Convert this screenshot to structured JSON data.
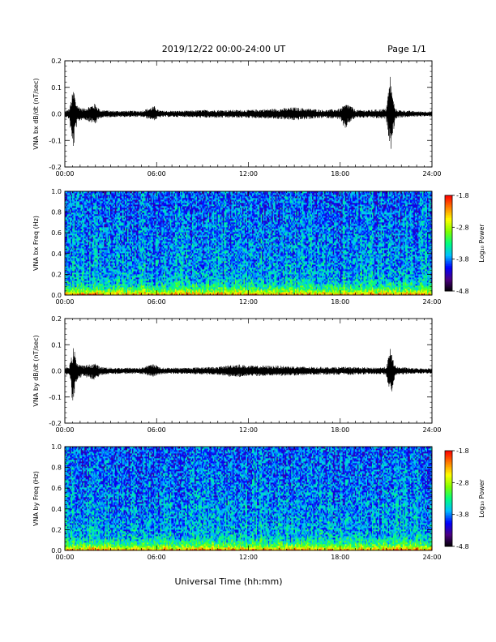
{
  "header": {
    "title": "2019/12/22  00:00-24:00 UT",
    "page": "Page 1/1"
  },
  "footer": {
    "xlabel": "Universal Time (hh:mm)"
  },
  "colorbar": {
    "label": "Log₁₀ Power",
    "ticks": [
      "-1.8",
      "-2.8",
      "-3.8",
      "-4.8"
    ],
    "tick_values": [
      -1.8,
      -2.8,
      -3.8,
      -4.8
    ],
    "range": [
      -4.8,
      -1.8
    ],
    "colormap": [
      "#000000",
      "#4b0082",
      "#0000ff",
      "#00bfff",
      "#00ff80",
      "#7fff00",
      "#ffff00",
      "#ff8000",
      "#ff0000"
    ]
  },
  "chart_data": [
    {
      "type": "line",
      "ylabel": "VNA bx dB/dt (nT/sec)",
      "xlim": [
        0,
        24
      ],
      "ylim": [
        -0.2,
        0.2
      ],
      "x_ticks": [
        "00:00",
        "06:00",
        "12:00",
        "18:00",
        "24:00"
      ],
      "y_ticks": [
        "0.2",
        "0.1",
        "0.0",
        "-0.1",
        "-0.2"
      ],
      "y_tick_values": [
        0.2,
        0.1,
        0.0,
        -0.1,
        -0.2
      ],
      "series": [
        {
          "x": [
            0,
            0.3,
            0.5,
            0.6,
            0.7,
            0.9,
            1.2,
            2.0,
            2.3,
            2.6,
            3.0,
            4.0,
            5.0,
            5.9,
            6.1,
            6.4,
            7.0,
            8.0,
            9.0,
            10.0,
            11.0,
            12.0,
            13.0,
            14.0,
            15.0,
            16.0,
            17.0,
            18.0,
            18.3,
            18.5,
            19.0,
            20.0,
            21.0,
            21.3,
            21.4,
            21.6,
            21.8,
            22.5,
            23.0,
            24.0
          ],
          "ymax": [
            0.01,
            0.02,
            0.08,
            0.1,
            0.05,
            0.03,
            0.02,
            0.04,
            0.015,
            0.015,
            0.012,
            0.012,
            0.012,
            0.03,
            0.015,
            0.012,
            0.012,
            0.012,
            0.015,
            0.015,
            0.015,
            0.015,
            0.018,
            0.02,
            0.025,
            0.02,
            0.015,
            0.02,
            0.035,
            0.04,
            0.015,
            0.015,
            0.02,
            0.16,
            0.08,
            0.02,
            0.015,
            0.012,
            0.01,
            0.01
          ],
          "ymin": [
            -0.01,
            -0.02,
            -0.14,
            -0.12,
            -0.06,
            -0.03,
            -0.02,
            -0.04,
            -0.015,
            -0.015,
            -0.012,
            -0.012,
            -0.012,
            -0.025,
            -0.015,
            -0.012,
            -0.012,
            -0.012,
            -0.015,
            -0.015,
            -0.015,
            -0.015,
            -0.018,
            -0.02,
            -0.025,
            -0.02,
            -0.015,
            -0.02,
            -0.07,
            -0.04,
            -0.015,
            -0.015,
            -0.02,
            -0.14,
            -0.1,
            -0.02,
            -0.015,
            -0.012,
            -0.01,
            -0.01
          ]
        }
      ]
    },
    {
      "type": "heatmap",
      "ylabel": "VNA bx Freq (Hz)",
      "xlim": [
        0,
        24
      ],
      "ylim": [
        0.0,
        1.0
      ],
      "x_ticks": [
        "00:00",
        "06:00",
        "12:00",
        "18:00",
        "24:00"
      ],
      "y_ticks": [
        "1.0",
        "0.8",
        "0.6",
        "0.4",
        "0.2",
        "0.0"
      ],
      "y_tick_values": [
        1.0,
        0.8,
        0.6,
        0.4,
        0.2,
        0.0
      ],
      "value_range": [
        -4.8,
        -1.8
      ]
    },
    {
      "type": "line",
      "ylabel": "VNA by dB/dt (nT/sec)",
      "xlim": [
        0,
        24
      ],
      "ylim": [
        -0.2,
        0.2
      ],
      "x_ticks": [
        "00:00",
        "06:00",
        "12:00",
        "18:00",
        "24:00"
      ],
      "y_ticks": [
        "0.2",
        "0.1",
        "0.0",
        "-0.1",
        "-0.2"
      ],
      "y_tick_values": [
        0.2,
        0.1,
        0.0,
        -0.1,
        -0.2
      ],
      "series": [
        {
          "x": [
            0,
            0.3,
            0.5,
            0.6,
            0.7,
            0.9,
            1.2,
            2.0,
            2.3,
            2.6,
            3.0,
            4.0,
            5.0,
            5.9,
            6.1,
            6.4,
            7.0,
            8.0,
            9.0,
            10.0,
            11.0,
            11.5,
            12.0,
            13.0,
            14.0,
            15.0,
            16.0,
            17.0,
            18.0,
            19.0,
            20.0,
            21.0,
            21.3,
            21.4,
            21.6,
            21.8,
            22.5,
            23.0,
            24.0
          ],
          "ymax": [
            0.01,
            0.02,
            0.07,
            0.1,
            0.05,
            0.03,
            0.02,
            0.03,
            0.015,
            0.015,
            0.012,
            0.012,
            0.012,
            0.03,
            0.015,
            0.012,
            0.012,
            0.012,
            0.015,
            0.015,
            0.025,
            0.025,
            0.02,
            0.02,
            0.02,
            0.018,
            0.015,
            0.015,
            0.015,
            0.015,
            0.012,
            0.015,
            0.09,
            0.06,
            0.02,
            0.015,
            0.012,
            0.01,
            0.01
          ],
          "ymin": [
            -0.01,
            -0.02,
            -0.13,
            -0.1,
            -0.05,
            -0.03,
            -0.02,
            -0.04,
            -0.015,
            -0.015,
            -0.012,
            -0.012,
            -0.012,
            -0.025,
            -0.015,
            -0.012,
            -0.012,
            -0.012,
            -0.015,
            -0.015,
            -0.025,
            -0.025,
            -0.02,
            -0.02,
            -0.02,
            -0.018,
            -0.015,
            -0.015,
            -0.015,
            -0.015,
            -0.012,
            -0.015,
            -0.1,
            -0.11,
            -0.02,
            -0.015,
            -0.012,
            -0.01,
            -0.01
          ]
        }
      ]
    },
    {
      "type": "heatmap",
      "ylabel": "VNA by Freq (Hz)",
      "xlim": [
        0,
        24
      ],
      "ylim": [
        0.0,
        1.0
      ],
      "x_ticks": [
        "00:00",
        "06:00",
        "12:00",
        "18:00",
        "24:00"
      ],
      "y_ticks": [
        "1.0",
        "0.8",
        "0.6",
        "0.4",
        "0.2",
        "0.0"
      ],
      "y_tick_values": [
        1.0,
        0.8,
        0.6,
        0.4,
        0.2,
        0.0
      ],
      "value_range": [
        -4.8,
        -1.8
      ]
    }
  ]
}
